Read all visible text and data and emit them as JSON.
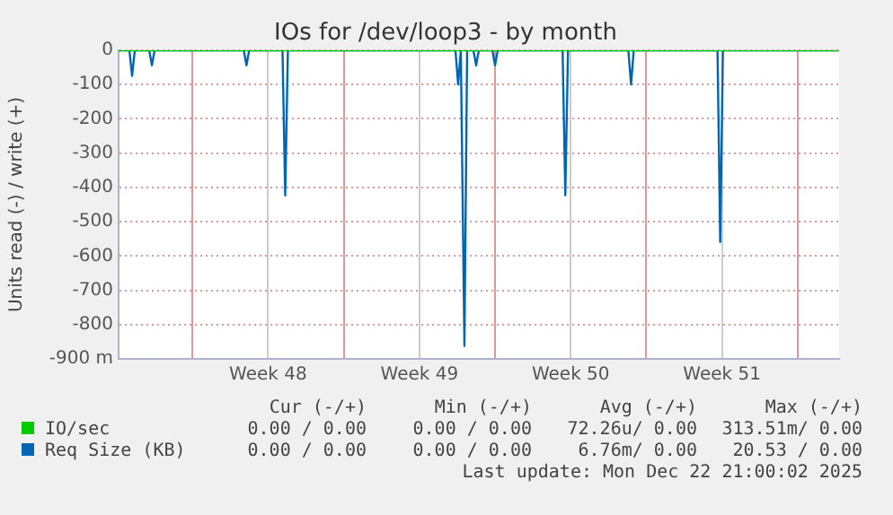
{
  "chart_data": {
    "type": "line",
    "title": "IOs for /dev/loop3 - by month",
    "ylabel": "Units read (-) / write (+)",
    "xlim": [
      "2025-11-20T14:00",
      "2025-12-23T22:00"
    ],
    "xticks": [
      {
        "value": "2025-11-24",
        "label": null
      },
      {
        "value": "2025-11-27T12:00",
        "label": "Week 48"
      },
      {
        "value": "2025-12-01",
        "label": null
      },
      {
        "value": "2025-12-04T12:00",
        "label": "Week 49"
      },
      {
        "value": "2025-12-08",
        "label": null
      },
      {
        "value": "2025-12-11T12:00",
        "label": "Week 50"
      },
      {
        "value": "2025-12-15",
        "label": null
      },
      {
        "value": "2025-12-18T12:00",
        "label": "Week 51"
      },
      {
        "value": "2025-12-22",
        "label": null
      }
    ],
    "ylim": [
      -900,
      0
    ],
    "yticks": [
      0,
      -100,
      -200,
      -300,
      -400,
      -500,
      -600,
      -700,
      -800,
      {
        "value": -900,
        "label": "-900 m"
      }
    ],
    "grid": true,
    "legend": "bottom",
    "marker": "none",
    "line_style": "solid",
    "series": [
      {
        "name": "IO/sec",
        "color": "#00cc00",
        "x": [
          "2025-11-20T14:00",
          "2025-12-23T22:00"
        ],
        "values": [
          0,
          0
        ]
      },
      {
        "name": "Req Size (KB)",
        "color": "#0066b3",
        "x": [
          "2025-11-20T14:00",
          "2025-11-21T02:00",
          "2025-11-21T05:00",
          "2025-11-21T08:00",
          "2025-11-22T00:00",
          "2025-11-22T03:00",
          "2025-11-22T06:00",
          "2025-11-26T09:00",
          "2025-11-26T12:00",
          "2025-11-26T15:00",
          "2025-11-28T04:00",
          "2025-11-28T07:00",
          "2025-11-28T10:00",
          "2025-12-06T04:00",
          "2025-12-06T07:00",
          "2025-12-06T10:00",
          "2025-12-06T14:00",
          "2025-12-06T17:00",
          "2025-12-07T00:00",
          "2025-12-07T03:00",
          "2025-12-07T06:00",
          "2025-12-07T21:00",
          "2025-12-08T00:00",
          "2025-12-08T03:00",
          "2025-12-11T03:00",
          "2025-12-11T06:00",
          "2025-12-11T09:00",
          "2025-12-14T04:00",
          "2025-12-14T07:00",
          "2025-12-14T10:00",
          "2025-12-18T07:00",
          "2025-12-18T10:00",
          "2025-12-18T13:00",
          "2025-12-23T22:00"
        ],
        "values": [
          0,
          0,
          -75,
          0,
          0,
          -44,
          0,
          0,
          -44,
          0,
          0,
          -423,
          0,
          0,
          -100,
          0,
          -862,
          0,
          0,
          -44,
          0,
          0,
          -44,
          0,
          0,
          -423,
          0,
          0,
          -100,
          0,
          0,
          -559,
          0,
          0
        ]
      }
    ],
    "annotations": [
      "Cur (-/+)",
      "Min (-/+)",
      "Avg (-/+)",
      "Max (-/+)",
      "0.00 / 0.00",
      "0.00 / 0.00",
      "72.26u/ 0.00",
      "313.51m/ 0.00",
      "0.00 / 0.00",
      "0.00 / 0.00",
      "6.76m/ 0.00",
      "20.53 / 0.00",
      "Last update: Mon Dec 22 21:00:02 2025"
    ]
  }
}
